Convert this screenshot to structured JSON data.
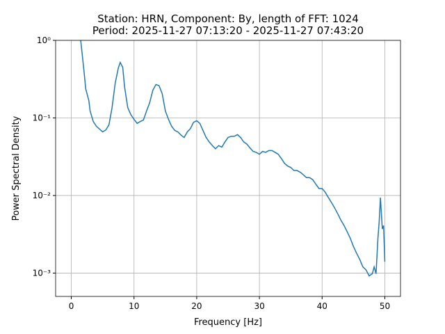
{
  "chart_data": {
    "type": "line",
    "title": "Station: HRN, Component: By, length of FFT: 1024",
    "subtitle": "Period: 2025-11-27 07:13:20 - 2025-11-27 07:43:20",
    "x_label": "Frequency [Hz]",
    "y_label": "Power Spectral Density",
    "x": [
      1.5,
      2.0,
      2.3,
      2.8,
      3.0,
      3.5,
      4.0,
      4.5,
      5.0,
      5.5,
      6.0,
      6.5,
      7.0,
      7.5,
      7.8,
      8.2,
      8.5,
      9.0,
      9.5,
      10,
      10.5,
      11,
      11.5,
      12,
      12.5,
      13,
      13.5,
      14,
      14.5,
      15,
      15.5,
      16,
      16.5,
      17,
      17.5,
      18,
      18.5,
      19,
      19.5,
      20,
      20.5,
      21,
      21.5,
      22,
      22.5,
      23,
      23.5,
      24,
      24.5,
      25,
      25.5,
      26,
      26.5,
      27,
      27.5,
      28,
      28.5,
      29,
      29.5,
      30,
      30.5,
      31,
      31.5,
      32,
      32.5,
      33,
      33.5,
      34,
      34.5,
      35,
      35.5,
      36,
      36.5,
      37,
      37.5,
      38,
      38.5,
      39,
      39.5,
      40,
      40.5,
      41,
      41.5,
      42,
      42.5,
      43,
      43.5,
      44,
      44.5,
      45,
      45.5,
      46,
      46.5,
      47,
      47.5,
      48,
      48.3,
      48.6,
      48.9,
      49.1,
      49.3,
      49.6,
      49.8,
      50
    ],
    "series": [
      {
        "name": "PSD",
        "color": "#1f77b4",
        "values": [
          1.0,
          0.42,
          0.237,
          0.167,
          0.123,
          0.09,
          0.078,
          0.072,
          0.066,
          0.07,
          0.081,
          0.136,
          0.28,
          0.44,
          0.52,
          0.45,
          0.25,
          0.136,
          0.11,
          0.096,
          0.085,
          0.09,
          0.094,
          0.123,
          0.157,
          0.227,
          0.27,
          0.26,
          0.205,
          0.123,
          0.096,
          0.078,
          0.069,
          0.066,
          0.06,
          0.056,
          0.066,
          0.073,
          0.088,
          0.092,
          0.085,
          0.069,
          0.056,
          0.049,
          0.044,
          0.04,
          0.044,
          0.042,
          0.049,
          0.056,
          0.058,
          0.058,
          0.061,
          0.056,
          0.049,
          0.046,
          0.041,
          0.037,
          0.036,
          0.034,
          0.037,
          0.036,
          0.038,
          0.038,
          0.036,
          0.034,
          0.03,
          0.026,
          0.024,
          0.023,
          0.021,
          0.021,
          0.02,
          0.0185,
          0.017,
          0.017,
          0.016,
          0.014,
          0.0123,
          0.0123,
          0.011,
          0.0094,
          0.0081,
          0.0069,
          0.0058,
          0.0048,
          0.0041,
          0.0034,
          0.0028,
          0.0022,
          0.0018,
          0.0015,
          0.0012,
          0.0011,
          0.00092,
          0.00098,
          0.0012,
          0.00098,
          0.0028,
          0.0046,
          0.0094,
          0.0037,
          0.0041,
          0.0014
        ]
      }
    ],
    "xlim": [
      -2.5,
      52.5
    ],
    "xticks": [
      0,
      10,
      20,
      30,
      40,
      50
    ],
    "ylim": [
      0.0005,
      1
    ],
    "y_scale": "log",
    "yticks": [
      {
        "value": 1,
        "label": "10⁰"
      },
      {
        "value": 0.1,
        "label": "10⁻¹"
      },
      {
        "value": 0.01,
        "label": "10⁻²"
      },
      {
        "value": 0.001,
        "label": "10⁻³"
      }
    ],
    "grid": true
  }
}
